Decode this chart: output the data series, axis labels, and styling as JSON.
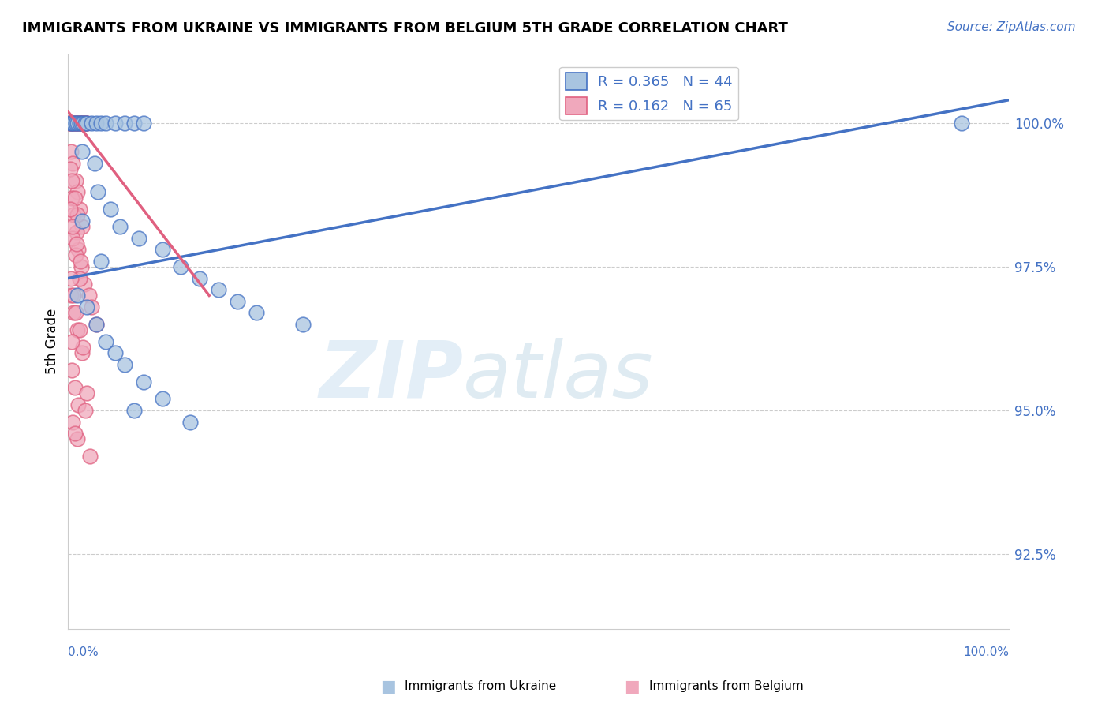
{
  "title": "IMMIGRANTS FROM UKRAINE VS IMMIGRANTS FROM BELGIUM 5TH GRADE CORRELATION CHART",
  "source": "Source: ZipAtlas.com",
  "ylabel": "5th Grade",
  "y_ticks": [
    92.5,
    95.0,
    97.5,
    100.0
  ],
  "y_tick_labels": [
    "92.5%",
    "95.0%",
    "97.5%",
    "100.0%"
  ],
  "xlim": [
    0,
    100
  ],
  "ylim": [
    91.2,
    101.2
  ],
  "ukraine_R": 0.365,
  "ukraine_N": 44,
  "belgium_R": 0.162,
  "belgium_N": 65,
  "ukraine_color": "#a8c4e0",
  "belgium_color": "#f0a8bc",
  "ukraine_edge_color": "#4472c4",
  "belgium_edge_color": "#e06080",
  "ukraine_line_color": "#4472c4",
  "belgium_line_color": "#e06080",
  "ukraine_line": [
    [
      0,
      97.3
    ],
    [
      100,
      100.4
    ]
  ],
  "belgium_line": [
    [
      0,
      100.2
    ],
    [
      15,
      97.0
    ]
  ],
  "ukraine_points_x": [
    0.2,
    0.4,
    0.6,
    0.8,
    1.0,
    1.2,
    1.4,
    1.6,
    1.8,
    2.0,
    2.5,
    3.0,
    3.5,
    4.0,
    5.0,
    6.0,
    7.0,
    8.0,
    1.5,
    2.8,
    3.2,
    4.5,
    5.5,
    7.5,
    10.0,
    12.0,
    14.0,
    16.0,
    18.0,
    20.0,
    1.0,
    2.0,
    3.0,
    4.0,
    6.0,
    8.0,
    10.0,
    13.0,
    1.5,
    3.5,
    5.0,
    7.0,
    25.0,
    95.0
  ],
  "ukraine_points_y": [
    100.0,
    100.0,
    100.0,
    100.0,
    100.0,
    100.0,
    100.0,
    100.0,
    100.0,
    100.0,
    100.0,
    100.0,
    100.0,
    100.0,
    100.0,
    100.0,
    100.0,
    100.0,
    99.5,
    99.3,
    98.8,
    98.5,
    98.2,
    98.0,
    97.8,
    97.5,
    97.3,
    97.1,
    96.9,
    96.7,
    97.0,
    96.8,
    96.5,
    96.2,
    95.8,
    95.5,
    95.2,
    94.8,
    98.3,
    97.6,
    96.0,
    95.0,
    96.5,
    100.0
  ],
  "belgium_points_x": [
    0.1,
    0.2,
    0.3,
    0.4,
    0.5,
    0.6,
    0.7,
    0.8,
    0.9,
    1.0,
    1.1,
    1.2,
    1.3,
    1.4,
    1.5,
    1.6,
    1.7,
    1.8,
    1.9,
    2.0,
    0.3,
    0.5,
    0.8,
    1.0,
    1.2,
    1.5,
    0.4,
    0.6,
    0.9,
    1.1,
    1.4,
    1.7,
    2.2,
    2.5,
    3.0,
    0.2,
    0.4,
    0.7,
    1.0,
    0.5,
    0.8,
    1.2,
    0.3,
    0.6,
    1.0,
    1.5,
    0.4,
    0.7,
    1.1,
    0.2,
    0.5,
    0.9,
    1.3,
    0.3,
    0.6,
    0.8,
    1.2,
    1.6,
    0.5,
    1.0,
    1.8,
    2.0,
    2.3,
    0.7,
    0.4
  ],
  "belgium_points_y": [
    100.0,
    100.0,
    100.0,
    100.0,
    100.0,
    100.0,
    100.0,
    100.0,
    100.0,
    100.0,
    100.0,
    100.0,
    100.0,
    100.0,
    100.0,
    100.0,
    100.0,
    100.0,
    100.0,
    100.0,
    99.5,
    99.3,
    99.0,
    98.8,
    98.5,
    98.2,
    98.7,
    98.4,
    98.1,
    97.8,
    97.5,
    97.2,
    97.0,
    96.8,
    96.5,
    99.2,
    99.0,
    98.7,
    98.4,
    98.0,
    97.7,
    97.3,
    97.0,
    96.7,
    96.4,
    96.0,
    95.7,
    95.4,
    95.1,
    98.5,
    98.2,
    97.9,
    97.6,
    97.3,
    97.0,
    96.7,
    96.4,
    96.1,
    94.8,
    94.5,
    95.0,
    95.3,
    94.2,
    94.6,
    96.2
  ]
}
